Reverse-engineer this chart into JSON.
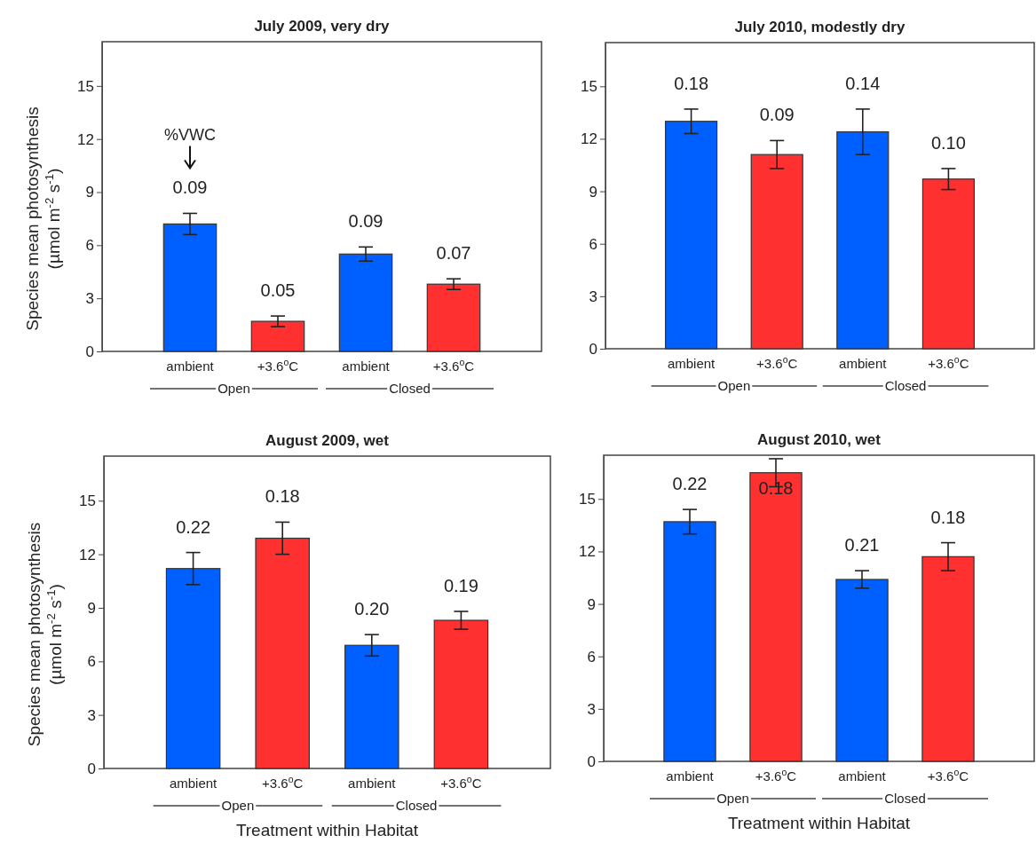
{
  "chart_data": [
    {
      "type": "bar",
      "title": "July 2009, very dry",
      "ylabel": "Species mean photosynthesis (µmol m$^{-2}$ s$^{-1}$)",
      "categories": [
        "ambient",
        "+3.6$^{o}$C",
        "ambient",
        "+3.6$^{o}$C"
      ],
      "values": [
        7.2,
        1.7,
        5.5,
        3.8
      ],
      "errors": [
        0.6,
        0.3,
        0.4,
        0.3
      ],
      "colors": [
        "#0060ff",
        "#ff3030",
        "#0060ff",
        "#ff3030"
      ],
      "ylim": [
        0,
        17.5
      ],
      "yticks": [
        0,
        3,
        6,
        9,
        12,
        15
      ],
      "annotations": [
        "%VWC",
        "0.09",
        "0.05",
        "0.09",
        "0.07",
        "Open",
        "Closed"
      ]
    },
    {
      "type": "bar",
      "title": "July 2010, modestly dry",
      "categories": [
        "ambient",
        "+3.6$^{o}$C",
        "ambient",
        "+3.6$^{o}$C"
      ],
      "values": [
        13.0,
        11.1,
        12.4,
        9.7
      ],
      "errors": [
        0.7,
        0.8,
        1.3,
        0.6
      ],
      "colors": [
        "#0060ff",
        "#ff3030",
        "#0060ff",
        "#ff3030"
      ],
      "ylim": [
        0,
        17.5
      ],
      "yticks": [
        0,
        3,
        6,
        9,
        12,
        15
      ],
      "annotations": [
        "0.18",
        "0.09",
        "0.14",
        "0.10",
        "Open",
        "Closed"
      ]
    },
    {
      "type": "bar",
      "title": "August 2009, wet",
      "ylabel": "Species mean photosynthesis (µmol m$^{-2}$ s$^{-1}$)",
      "xlabel": "Treatment within Habitat",
      "categories": [
        "ambient",
        "+3.6$^{o}$C",
        "ambient",
        "+3.6$^{o}$C"
      ],
      "values": [
        11.2,
        12.9,
        6.9,
        8.3
      ],
      "errors": [
        0.9,
        0.9,
        0.6,
        0.5
      ],
      "colors": [
        "#0060ff",
        "#ff3030",
        "#0060ff",
        "#ff3030"
      ],
      "ylim": [
        0,
        17.5
      ],
      "yticks": [
        0,
        3,
        6,
        9,
        12,
        15
      ],
      "annotations": [
        "0.22",
        "0.18",
        "0.20",
        "0.19",
        "Open",
        "Closed"
      ]
    },
    {
      "type": "bar",
      "title": "August 2010, wet",
      "xlabel": "Treatment within Habitat",
      "categories": [
        "ambient",
        "+3.6$^{o}$C",
        "ambient",
        "+3.6$^{o}$C"
      ],
      "values": [
        13.7,
        16.5,
        10.4,
        11.7
      ],
      "errors": [
        0.7,
        0.8,
        0.5,
        0.8
      ],
      "colors": [
        "#0060ff",
        "#ff3030",
        "#0060ff",
        "#ff3030"
      ],
      "ylim": [
        0,
        17.5
      ],
      "yticks": [
        0,
        3,
        6,
        9,
        12,
        15
      ],
      "annotations": [
        "0.22",
        "0.18",
        "0.21",
        "0.18",
        "Open",
        "Closed"
      ]
    }
  ]
}
